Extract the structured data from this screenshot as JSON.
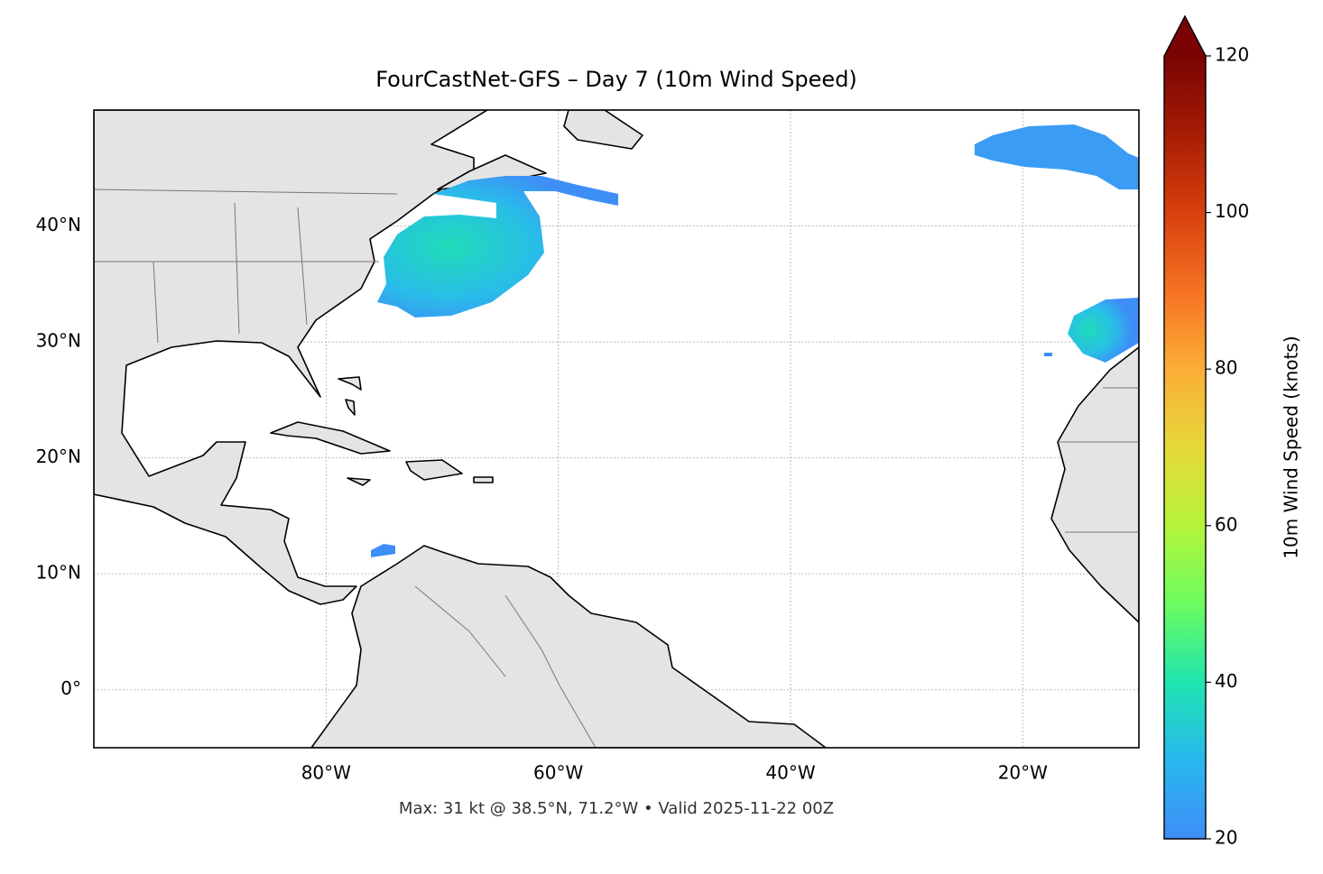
{
  "title": "FourCastNet-GFS – Day 7 (10m Wind Speed)",
  "caption": "Max: 31 kt @ 38.5°N, 71.2°W • Valid 2025-11-22 00Z",
  "map": {
    "xlim": [
      -100,
      -10
    ],
    "ylim": [
      -5,
      50
    ],
    "xticks": [
      {
        "value": -80,
        "label": "80°W"
      },
      {
        "value": -60,
        "label": "60°W"
      },
      {
        "value": -40,
        "label": "40°W"
      },
      {
        "value": -20,
        "label": "20°W"
      }
    ],
    "yticks": [
      {
        "value": 0,
        "label": "0°"
      },
      {
        "value": 10,
        "label": "10°N"
      },
      {
        "value": 20,
        "label": "20°N"
      },
      {
        "value": 30,
        "label": "30°N"
      },
      {
        "value": 40,
        "label": "40°N"
      }
    ],
    "grid": true
  },
  "colorbar": {
    "label": "10m Wind Speed (knots)",
    "lim": [
      20,
      120
    ],
    "ticks": [
      20,
      40,
      60,
      80,
      100,
      120
    ],
    "extend": "max"
  }
}
